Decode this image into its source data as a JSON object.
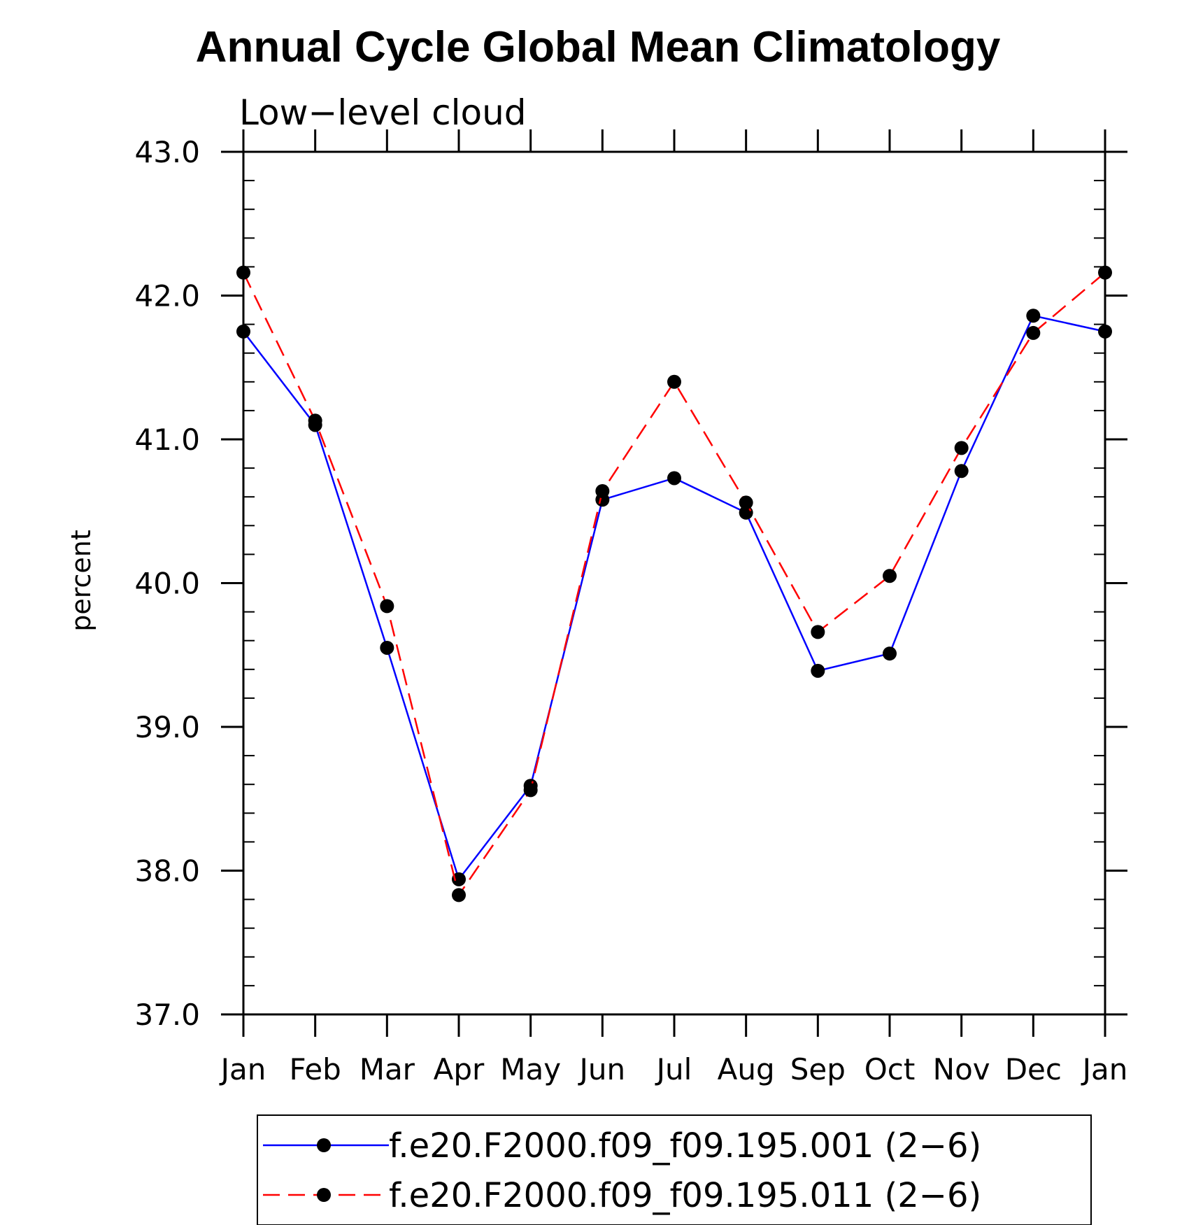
{
  "chart_data": {
    "type": "line",
    "title": "Annual Cycle Global Mean Climatology",
    "subtitle": "Low−level cloud",
    "xlabel": "",
    "ylabel": "percent",
    "categories": [
      "Jan",
      "Feb",
      "Mar",
      "Apr",
      "May",
      "Jun",
      "Jul",
      "Aug",
      "Sep",
      "Oct",
      "Nov",
      "Dec",
      "Jan"
    ],
    "ylim": [
      37.0,
      43.0
    ],
    "yticks": [
      "37.0",
      "38.0",
      "39.0",
      "40.0",
      "41.0",
      "42.0",
      "43.0"
    ],
    "grid": false,
    "legend_position": "bottom",
    "series": [
      {
        "name": "f.e20.F2000.f09_f09.195.001 (2−6)",
        "color": "#0000ff",
        "line_style": "solid",
        "marker": "filled-circle",
        "values": [
          41.75,
          41.1,
          39.55,
          37.94,
          38.59,
          40.58,
          40.73,
          40.49,
          39.39,
          39.51,
          40.78,
          41.86,
          41.75
        ]
      },
      {
        "name": "f.e20.F2000.f09_f09.195.011 (2−6)",
        "color": "#ff0000",
        "line_style": "dashed",
        "marker": "filled-circle",
        "values": [
          42.16,
          41.13,
          39.84,
          37.83,
          38.56,
          40.64,
          41.4,
          40.56,
          39.66,
          40.05,
          40.94,
          41.74,
          42.16
        ]
      }
    ]
  }
}
